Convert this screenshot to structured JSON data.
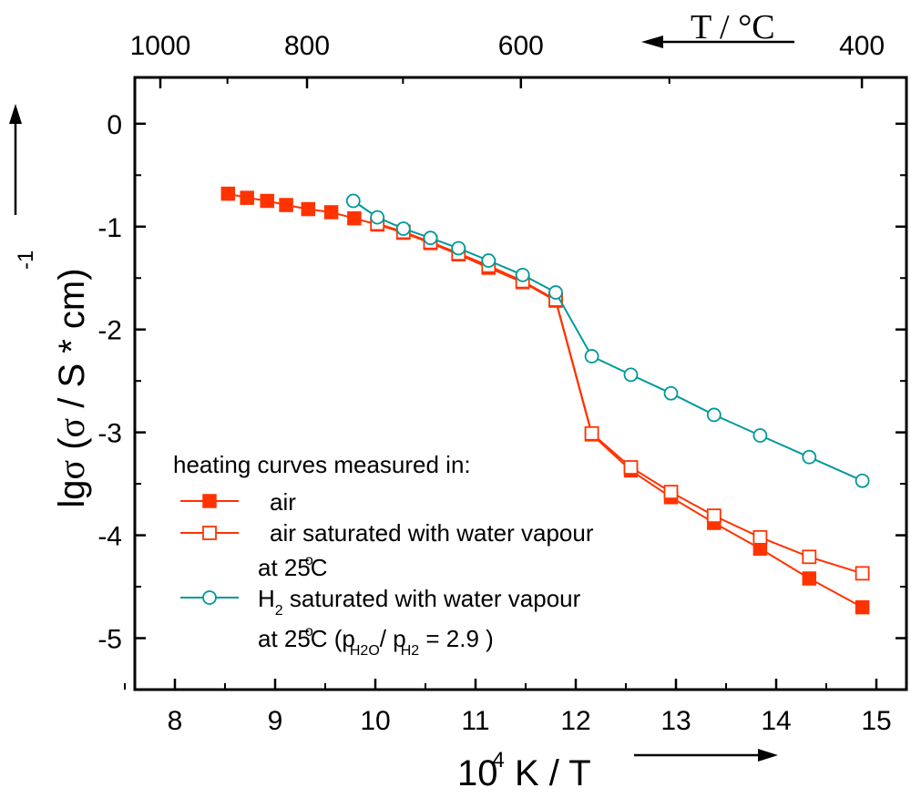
{
  "chart_data": {
    "type": "line",
    "title": "",
    "xlabel": "10",
    "xlabel_sup": "4",
    "xlabel_rest": " K / T",
    "ylabel_parts": {
      "a": "lg",
      "sigma": "σ",
      "b": " (",
      "sigma2": "σ",
      "c": " / S * cm)",
      "exp": "-1"
    },
    "top_label": "T / °C",
    "xlim": [
      7.6,
      15.3
    ],
    "ylim": [
      -5.5,
      0.45
    ],
    "xticks": [
      8,
      9,
      10,
      11,
      12,
      13,
      14,
      15
    ],
    "yticks": [
      0,
      -1,
      -2,
      -3,
      -4,
      -5
    ],
    "xtick_labels": [
      "8",
      "9",
      "10",
      "11",
      "12",
      "13",
      "14",
      "15"
    ],
    "ytick_labels": [
      "0",
      "-1",
      "-2",
      "-3",
      "-4",
      "-5"
    ],
    "top_ticks": [
      {
        "celsius": 1000,
        "label": "1000"
      },
      {
        "celsius": 800,
        "label": "800"
      },
      {
        "celsius": 600,
        "label": "600"
      },
      {
        "celsius": 400,
        "label": "400"
      }
    ],
    "legend_title": "heating curves measured in:",
    "legend_lines": {
      "air": "air",
      "wet_air_1": "air saturated with water vapour",
      "wet_air_2": "at 25",
      "wet_air_2_sup": "o",
      "wet_air_2_end": "C",
      "h2_1a": "H",
      "h2_1sub": "2",
      "h2_1b": " saturated with water vapour",
      "h2_2a": "at 25",
      "h2_2sup": "o",
      "h2_2b": "C (p",
      "h2_2sub1": "H2O",
      "h2_2c": "/ p",
      "h2_2sub2": "H2",
      "h2_2d": " = 2.9 )"
    },
    "series": [
      {
        "key": "air",
        "color": "#ff3300",
        "marker": "filled-square",
        "x": [
          8.53,
          8.72,
          8.92,
          9.11,
          9.33,
          9.56,
          9.79,
          10.02,
          10.28,
          10.55,
          10.83,
          11.13,
          11.47,
          11.8,
          12.16,
          12.55,
          12.95,
          13.38,
          13.84,
          14.33,
          14.86
        ],
        "y": [
          -0.68,
          -0.72,
          -0.75,
          -0.79,
          -0.83,
          -0.86,
          -0.92,
          -0.98,
          -1.06,
          -1.16,
          -1.27,
          -1.4,
          -1.54,
          -1.72,
          -3.02,
          -3.37,
          -3.63,
          -3.88,
          -4.13,
          -4.42,
          -4.7
        ]
      },
      {
        "key": "wet_air",
        "color": "#ff3300",
        "marker": "open-square",
        "x": [
          10.02,
          10.28,
          10.55,
          10.83,
          11.13,
          11.47,
          11.8,
          12.16,
          12.55,
          12.95,
          13.38,
          13.84,
          14.33,
          14.86
        ],
        "y": [
          -0.97,
          -1.05,
          -1.15,
          -1.26,
          -1.38,
          -1.53,
          -1.71,
          -3.01,
          -3.34,
          -3.58,
          -3.81,
          -4.02,
          -4.21,
          -4.37
        ]
      },
      {
        "key": "h2",
        "color": "#009999",
        "marker": "open-circle",
        "x": [
          9.78,
          10.02,
          10.28,
          10.55,
          10.83,
          11.13,
          11.47,
          11.8,
          12.16,
          12.55,
          12.95,
          13.38,
          13.84,
          14.33,
          14.86
        ],
        "y": [
          -0.75,
          -0.91,
          -1.02,
          -1.11,
          -1.21,
          -1.33,
          -1.47,
          -1.64,
          -2.26,
          -2.44,
          -2.62,
          -2.83,
          -3.03,
          -3.24,
          -3.47
        ]
      }
    ]
  }
}
